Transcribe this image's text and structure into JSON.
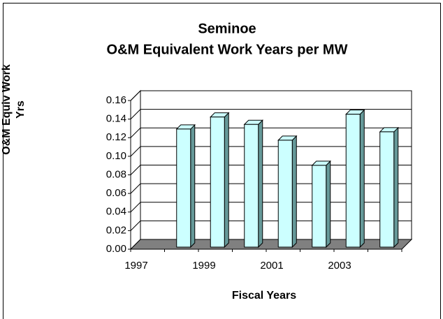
{
  "chart_data": {
    "type": "bar3d",
    "title": "Seminoe",
    "subtitle": "O&M Equivalent Work Years per MW",
    "x_label": "Fiscal Years",
    "y_label": "O&M Equiv Work Yrs",
    "categories": [
      "1997",
      null,
      "1999",
      null,
      "2001",
      null,
      "2003",
      null
    ],
    "values": [
      null,
      0.127,
      0.14,
      0.132,
      0.115,
      0.088,
      0.143,
      0.124
    ],
    "color": "#ccffff",
    "ylim": [
      0,
      0.16
    ],
    "yticks": [
      {
        "value": 0,
        "label": "0.00"
      },
      {
        "value": 0.02,
        "label": "0.02"
      },
      {
        "value": 0.04,
        "label": "0.04"
      },
      {
        "value": 0.06,
        "label": "0.06"
      },
      {
        "value": 0.08,
        "label": "0.08"
      },
      {
        "value": 0.1,
        "label": "0.10"
      },
      {
        "value": 0.12,
        "label": "0.12"
      },
      {
        "value": 0.14,
        "label": "0.14"
      },
      {
        "value": 0.16,
        "label": "0.16"
      }
    ],
    "grid": true
  }
}
